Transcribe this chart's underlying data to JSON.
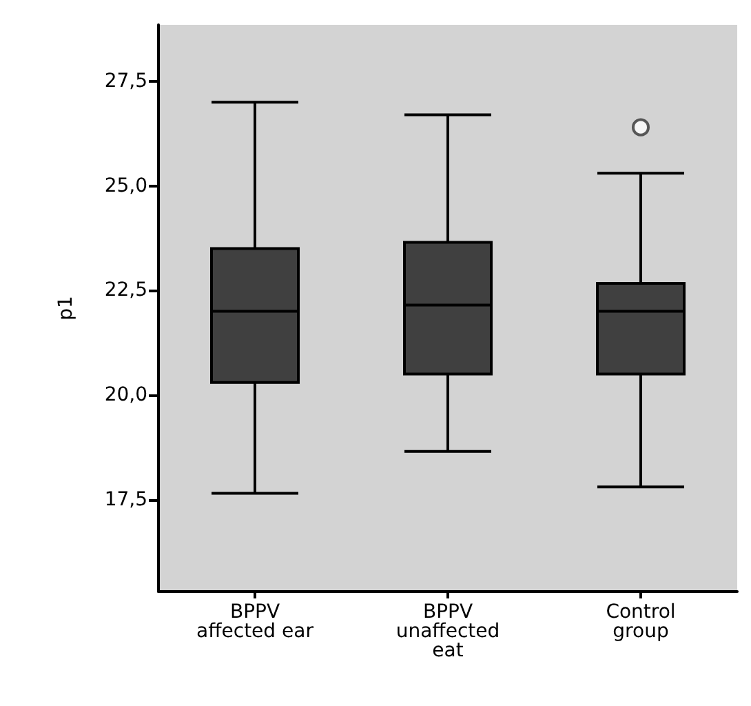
{
  "chart_data": {
    "type": "box",
    "ylabel": "p1",
    "categories": [
      "BPPV\naffected ear",
      "BPPV\nunaffected\neat",
      "Control\ngroup"
    ],
    "series": [
      {
        "color": "#404040",
        "boxes": [
          {
            "low": 17.65,
            "q1": 20.3,
            "median": 22.0,
            "q3": 23.5,
            "high": 27.0
          },
          {
            "low": 18.65,
            "q1": 20.5,
            "median": 22.15,
            "q3": 23.65,
            "high": 26.7
          },
          {
            "low": 17.8,
            "q1": 20.5,
            "median": 22.0,
            "q3": 22.67,
            "high": 25.3,
            "outliers": [
              26.4
            ]
          }
        ]
      }
    ],
    "ylim": [
      15.3,
      28.85
    ],
    "yticks": [
      {
        "value": 17.5,
        "label": "17,5"
      },
      {
        "value": 20,
        "label": "20,0"
      },
      {
        "value": 22.5,
        "label": "22,5"
      },
      {
        "value": 25,
        "label": "25,0"
      },
      {
        "value": 27.5,
        "label": "27,5"
      }
    ],
    "marker": "circle"
  }
}
